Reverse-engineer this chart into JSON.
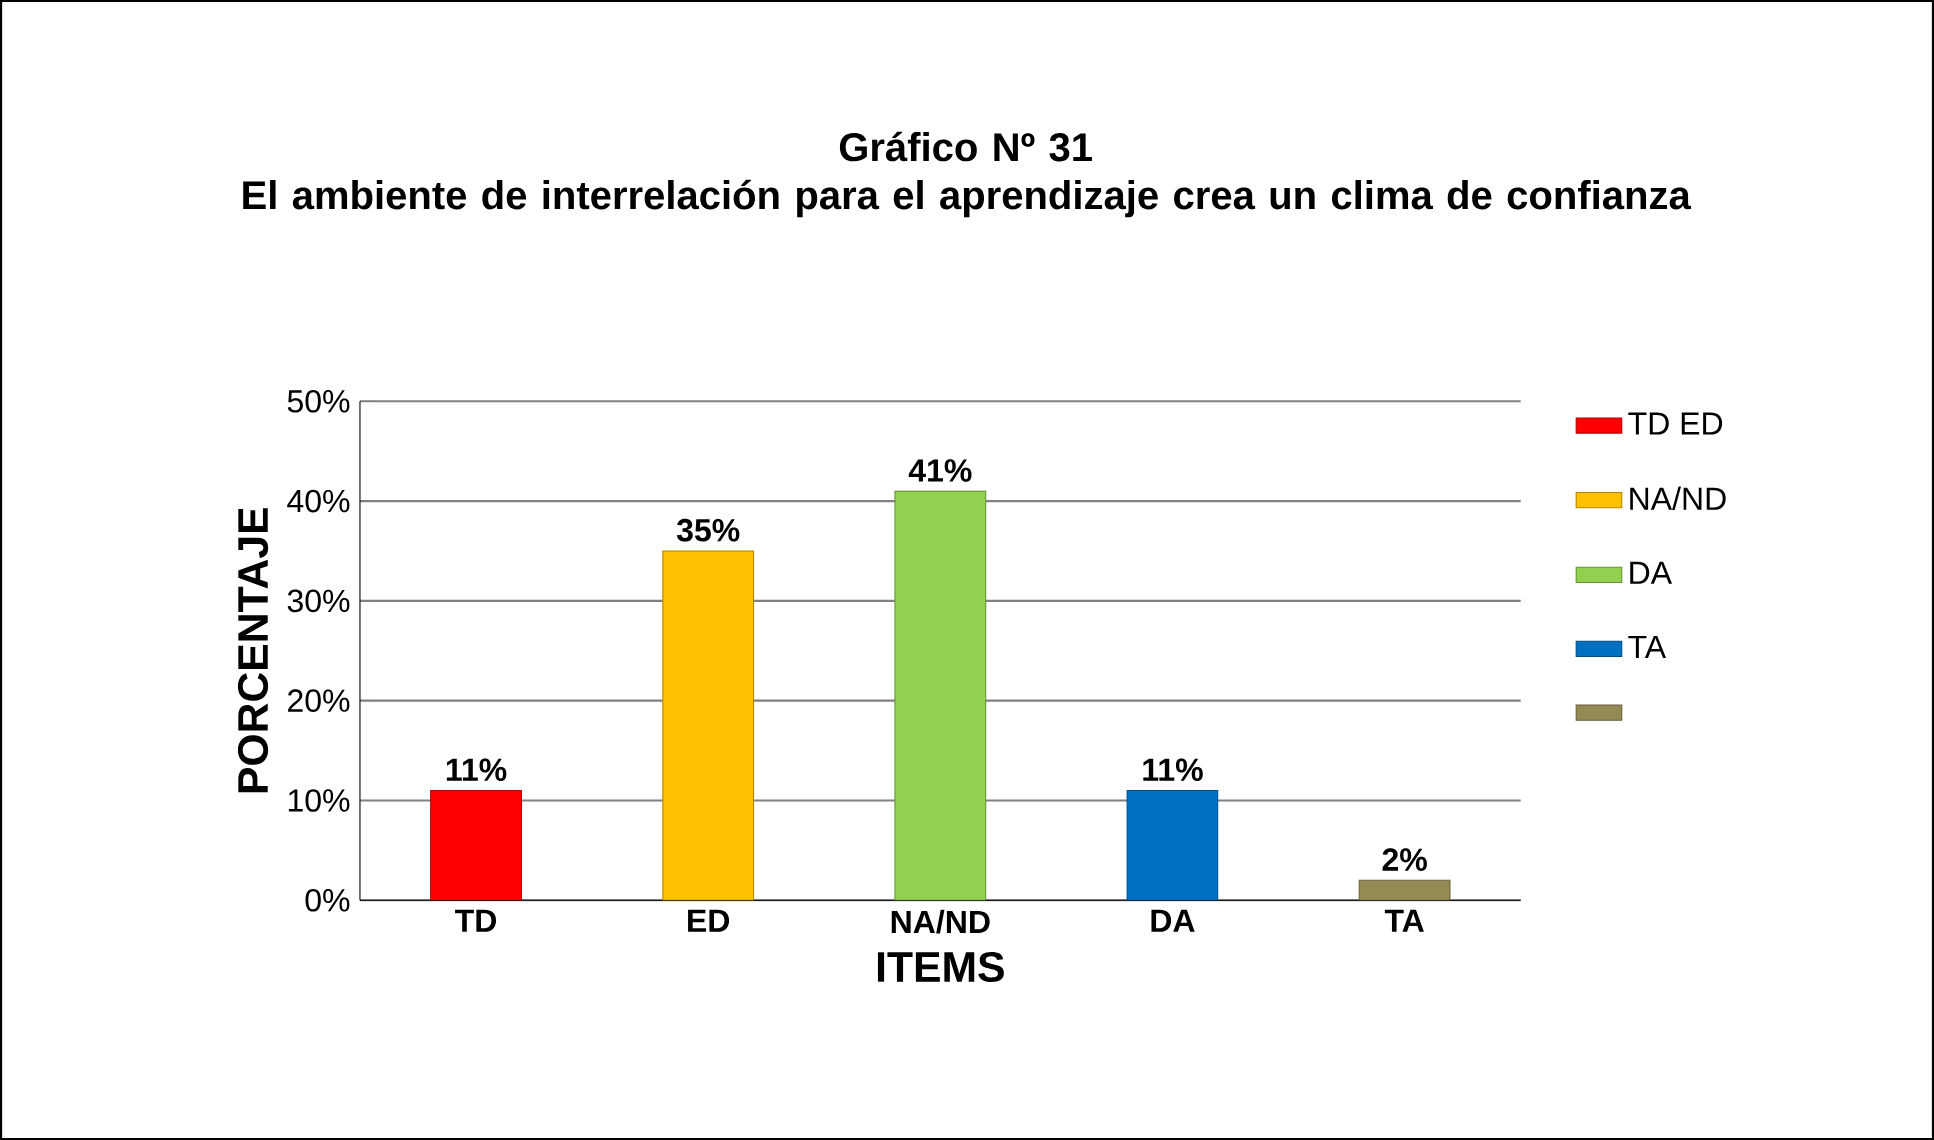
{
  "chart_data": {
    "type": "bar",
    "title": "Gráfico Nº 31",
    "subtitle": "El ambiente de interrelación para el aprendizaje crea un clima de confianza",
    "xlabel": "ITEMS",
    "ylabel": "PORCENTAJE",
    "categories": [
      "TD",
      "ED",
      "NA/ND",
      "DA",
      "TA"
    ],
    "series": [
      {
        "name": "TD ED",
        "color": "#ff0000",
        "values": [
          11,
          null,
          null,
          null,
          null
        ],
        "value_labels": [
          "11%",
          null,
          null,
          null,
          null
        ]
      },
      {
        "name": "NA/ND",
        "color": "#ffc000",
        "values": [
          null,
          35,
          null,
          null,
          null
        ],
        "value_labels": [
          null,
          "35%",
          null,
          null,
          null
        ]
      },
      {
        "name": "DA",
        "color": "#92d050",
        "values": [
          null,
          null,
          41,
          null,
          null
        ],
        "value_labels": [
          null,
          null,
          "41%",
          null,
          null
        ]
      },
      {
        "name": "TA",
        "color": "#0070c0",
        "values": [
          null,
          null,
          null,
          11,
          null
        ],
        "value_labels": [
          null,
          null,
          null,
          "11%",
          null
        ]
      },
      {
        "color": "#948a54",
        "values": [
          null,
          null,
          null,
          null,
          2
        ],
        "value_labels": [
          null,
          null,
          null,
          null,
          "2%"
        ]
      }
    ],
    "ylim": [
      0,
      50
    ],
    "yticks": [
      {
        "value": 0,
        "label": "0%"
      },
      {
        "value": 10,
        "label": "10%"
      },
      {
        "value": 20,
        "label": "20%"
      },
      {
        "value": 30,
        "label": "30%"
      },
      {
        "value": 40,
        "label": "40%"
      },
      {
        "value": 50,
        "label": "50%"
      }
    ],
    "grid": "y",
    "legend": "right"
  }
}
